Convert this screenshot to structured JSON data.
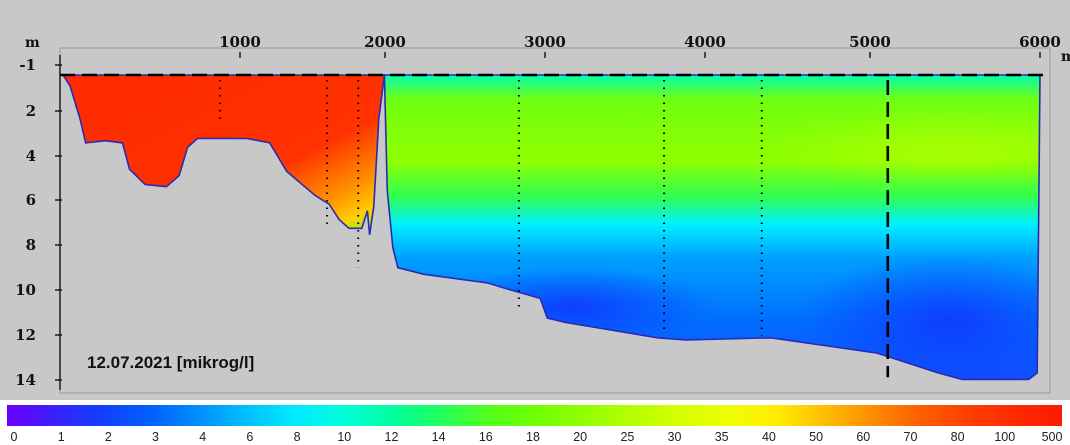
{
  "chart_data": {
    "type": "heatmap",
    "title": "12.07.2021 [mikrog/l]",
    "x_axis": {
      "unit": "m",
      "ticks": [
        "1000",
        "2000",
        "3000",
        "4000",
        "5000",
        "6000"
      ],
      "range": [
        -150,
        6150
      ],
      "position": "top"
    },
    "y_axis": {
      "unit": "m",
      "ticks": [
        "-1",
        "2",
        "4",
        "6",
        "8",
        "10",
        "12",
        "14"
      ],
      "range": [
        -1.5,
        14.5
      ],
      "inverted": true
    },
    "water_level": 0.0,
    "profile_points": {
      "left_basin": [
        [
          0,
          0.0
        ],
        [
          50,
          0.5
        ],
        [
          120,
          2.0
        ],
        [
          160,
          3.1
        ],
        [
          300,
          3.0
        ],
        [
          420,
          3.1
        ],
        [
          470,
          4.3
        ],
        [
          580,
          5.0
        ],
        [
          730,
          5.1
        ],
        [
          820,
          4.6
        ],
        [
          880,
          3.3
        ],
        [
          950,
          2.9
        ],
        [
          1300,
          2.9
        ],
        [
          1460,
          3.1
        ],
        [
          1580,
          4.4
        ],
        [
          1780,
          5.5
        ],
        [
          1880,
          5.9
        ],
        [
          1950,
          6.6
        ],
        [
          2020,
          7.0
        ],
        [
          2110,
          7.0
        ],
        [
          2150,
          6.2
        ],
        [
          2165,
          7.3
        ],
        [
          2195,
          6.0
        ],
        [
          2230,
          2.0
        ],
        [
          2270,
          0.0
        ]
      ],
      "right_basin": [
        [
          2270,
          0.0
        ],
        [
          2290,
          5.3
        ],
        [
          2330,
          7.9
        ],
        [
          2365,
          8.8
        ],
        [
          2550,
          9.1
        ],
        [
          3000,
          9.5
        ],
        [
          3100,
          9.7
        ],
        [
          3370,
          10.2
        ],
        [
          3420,
          11.1
        ],
        [
          3550,
          11.3
        ],
        [
          4200,
          12.0
        ],
        [
          4400,
          12.1
        ],
        [
          5000,
          12.0
        ],
        [
          5750,
          12.7
        ],
        [
          6180,
          13.6
        ],
        [
          6350,
          13.9
        ],
        [
          6820,
          13.9
        ],
        [
          6880,
          13.6
        ],
        [
          6900,
          0.0
        ]
      ]
    },
    "sampling_verticals": [
      {
        "x": 1110,
        "from": 0.0,
        "to": 2.2
      },
      {
        "x": 1865,
        "from": 0.0,
        "to": 6.8
      },
      {
        "x": 2085,
        "from": 0.0,
        "to": 8.8
      },
      {
        "x": 3220,
        "from": 0.0,
        "to": 10.7
      },
      {
        "x": 4245,
        "from": 0.0,
        "to": 11.8
      },
      {
        "x": 4935,
        "from": 0.0,
        "to": 11.9
      },
      {
        "x": 5825,
        "from": 0.0,
        "to": 13.8,
        "style": "dashed"
      }
    ],
    "color_scale": {
      "labels": [
        "0",
        "1",
        "2",
        "3",
        "4",
        "6",
        "8",
        "10",
        "12",
        "14",
        "16",
        "18",
        "20",
        "25",
        "30",
        "35",
        "40",
        "50",
        "60",
        "70",
        "80",
        "100",
        "500"
      ],
      "colors": [
        "#6a00ff",
        "#3a20ff",
        "#1040ff",
        "#0060ff",
        "#0090ff",
        "#00c0ff",
        "#00eaff",
        "#00ffdc",
        "#00ffa0",
        "#20ff60",
        "#50ff20",
        "#70ff00",
        "#90ff00",
        "#b4ff00",
        "#d4ff00",
        "#eeff00",
        "#ffee00",
        "#ffc000",
        "#ff9000",
        "#ff6000",
        "#ff4000",
        "#ff2a00",
        "#ff1a00"
      ]
    },
    "grid": false
  }
}
